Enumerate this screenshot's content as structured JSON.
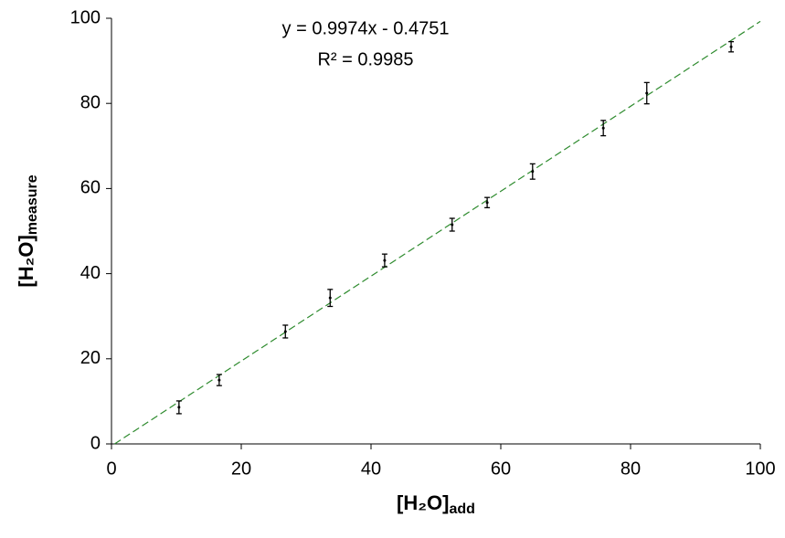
{
  "chart_data": {
    "type": "scatter",
    "x_label": {
      "main": "[H₂O]",
      "sub": "add"
    },
    "y_label": {
      "main": "[H₂O]",
      "sub": "measure"
    },
    "x": [
      10.4,
      16.6,
      26.8,
      33.7,
      42.1,
      52.5,
      57.9,
      64.9,
      75.8,
      82.5,
      95.5
    ],
    "values": [
      8.6,
      15.0,
      26.4,
      34.3,
      43.1,
      51.5,
      56.7,
      64.0,
      74.2,
      82.4,
      93.3
    ],
    "errors": [
      1.5,
      1.3,
      1.5,
      2.0,
      1.5,
      1.5,
      1.2,
      1.8,
      1.8,
      2.5,
      1.2
    ],
    "color": "#000000",
    "trendline": {
      "slope": 0.9974,
      "intercept": -0.4751,
      "color": "#2e8b2e",
      "equation": "y = 0.9974x - 0.4751",
      "r_squared": "R² = 0.9985"
    },
    "xlim": [
      0,
      100
    ],
    "xticks": [
      0,
      20,
      40,
      60,
      80,
      100
    ],
    "ylim": [
      0,
      100
    ],
    "yticks": [
      0,
      20,
      40,
      60,
      80,
      100
    ],
    "grid": false
  }
}
